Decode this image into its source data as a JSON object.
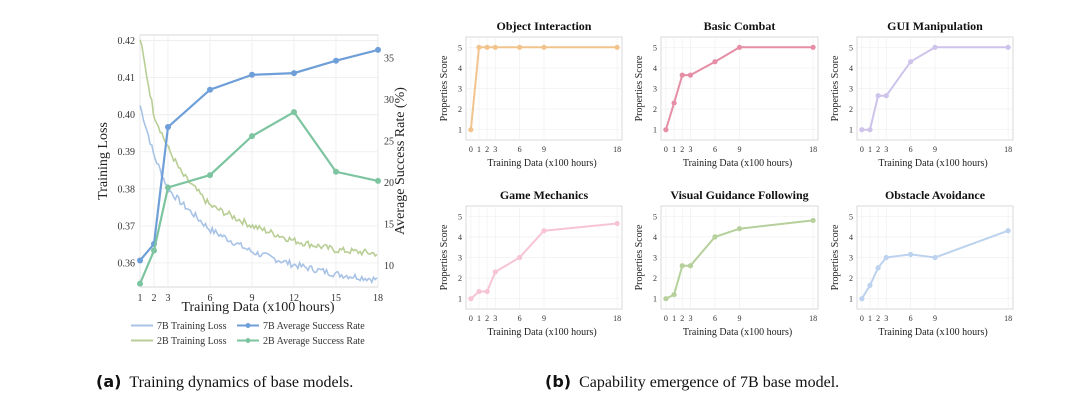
{
  "chart_data": [
    {
      "id": "a",
      "type": "line",
      "xlabel": "Training Data (x100 hours)",
      "ylabel": "Training Loss",
      "y2label": "Average Success Rate (%)",
      "xticks": [
        1,
        2,
        3,
        6,
        9,
        12,
        15,
        18
      ],
      "xlim": [
        1,
        18
      ],
      "ylim": [
        0.3535,
        0.4215
      ],
      "y2lim": [
        7.4,
        37.8
      ],
      "yticks": [
        0.36,
        0.37,
        0.38,
        0.39,
        0.4,
        0.41,
        0.42
      ],
      "y2ticks": [
        10,
        15,
        20,
        25,
        30,
        35
      ],
      "grid": true,
      "legend_position": "bottom",
      "loss_series": [
        {
          "name": "7B Training Loss",
          "color": "#a9c3e6",
          "anchors": [
            [
              1,
              0.4025
            ],
            [
              2,
              0.389
            ],
            [
              3,
              0.38
            ],
            [
              4,
              0.376
            ],
            [
              6,
              0.369
            ],
            [
              9,
              0.363
            ],
            [
              12,
              0.3595
            ],
            [
              15,
              0.357
            ],
            [
              18,
              0.3555
            ]
          ]
        },
        {
          "name": "2B Training Loss",
          "color": "#b9ce95",
          "anchors": [
            [
              1,
              0.4205
            ],
            [
              2,
              0.4
            ],
            [
              3,
              0.391
            ],
            [
              4,
              0.384
            ],
            [
              6,
              0.3755
            ],
            [
              9,
              0.37
            ],
            [
              12,
              0.366
            ],
            [
              15,
              0.3635
            ],
            [
              18,
              0.3625
            ]
          ]
        }
      ],
      "series": [
        {
          "name": "7B Average Success Rate",
          "color": "#6f9fd8",
          "axis": "right",
          "x": [
            1,
            2,
            3,
            6,
            9,
            12,
            15,
            18
          ],
          "values": [
            10.6,
            12.6,
            26.7,
            31.2,
            33.0,
            33.2,
            34.7,
            36.0
          ]
        },
        {
          "name": "2B Average Success Rate",
          "color": "#7dc4a0",
          "axis": "right",
          "x": [
            1,
            2,
            3,
            6,
            9,
            12,
            15,
            18
          ],
          "values": [
            7.8,
            11.8,
            19.4,
            20.9,
            25.6,
            28.5,
            21.3,
            20.2
          ]
        }
      ]
    },
    {
      "id": "b1",
      "type": "line",
      "title": "Object Interaction",
      "color": "#f2c48d",
      "x": [
        0,
        1,
        2,
        3,
        6,
        9,
        18
      ],
      "values": [
        1,
        5,
        5,
        5,
        5,
        5,
        5
      ],
      "xlabel": "Training Data (x100 hours)",
      "ylabel": "Properties Score",
      "ylim": [
        0.5,
        5.5
      ],
      "xlim": [
        -0.6,
        18.6
      ]
    },
    {
      "id": "b2",
      "type": "line",
      "title": "Basic Combat",
      "color": "#e58ea6",
      "x": [
        0,
        1,
        2,
        3,
        6,
        9,
        18
      ],
      "values": [
        1,
        2.3,
        3.65,
        3.65,
        4.3,
        5,
        5
      ],
      "xlabel": "Training Data (x100 hours)",
      "ylabel": "Properties Score",
      "ylim": [
        0.5,
        5.5
      ],
      "xlim": [
        -0.6,
        18.6
      ]
    },
    {
      "id": "b3",
      "type": "line",
      "title": "GUI Manipulation",
      "color": "#cdc3eb",
      "x": [
        0,
        1,
        2,
        3,
        6,
        9,
        18
      ],
      "values": [
        1,
        1,
        2.65,
        2.65,
        4.3,
        5,
        5
      ],
      "xlabel": "Training Data (x100 hours)",
      "ylabel": "Properties Score",
      "ylim": [
        0.5,
        5.5
      ],
      "xlim": [
        -0.6,
        18.6
      ]
    },
    {
      "id": "b4",
      "type": "line",
      "title": "Game Mechanics",
      "color": "#f7c4d4",
      "x": [
        0,
        1,
        2,
        3,
        6,
        9,
        18
      ],
      "values": [
        1,
        1.35,
        1.35,
        2.3,
        3.0,
        4.3,
        4.65
      ],
      "xlabel": "Training Data (x100 hours)",
      "ylabel": "Properties Score",
      "ylim": [
        0.5,
        5.5
      ],
      "xlim": [
        -0.6,
        18.6
      ]
    },
    {
      "id": "b5",
      "type": "line",
      "title": "Visual Guidance Following",
      "color": "#b5d09a",
      "x": [
        0,
        1,
        2,
        3,
        6,
        9,
        18
      ],
      "values": [
        1,
        1.2,
        2.6,
        2.6,
        4.0,
        4.4,
        4.8
      ],
      "xlabel": "Training Data (x100 hours)",
      "ylabel": "Properties Score",
      "ylim": [
        0.5,
        5.5
      ],
      "xlim": [
        -0.6,
        18.6
      ]
    },
    {
      "id": "b6",
      "type": "line",
      "title": "Obstacle Avoidance",
      "color": "#bcd2ee",
      "x": [
        0,
        1,
        2,
        3,
        6,
        9,
        18
      ],
      "values": [
        1,
        1.65,
        2.5,
        3.0,
        3.15,
        3.0,
        4.3
      ],
      "xlabel": "Training Data (x100 hours)",
      "ylabel": "Properties Score",
      "ylim": [
        0.5,
        5.5
      ],
      "xlim": [
        -0.6,
        18.6
      ]
    }
  ],
  "small_yticks": [
    1,
    2,
    3,
    4,
    5
  ],
  "small_xticks": [
    0,
    1,
    2,
    3,
    6,
    9,
    18
  ],
  "captions": {
    "a_label": "(a)",
    "a_text": "Training dynamics of base models.",
    "b_label": "(b)",
    "b_text": "Capability emergence of 7B base model."
  }
}
